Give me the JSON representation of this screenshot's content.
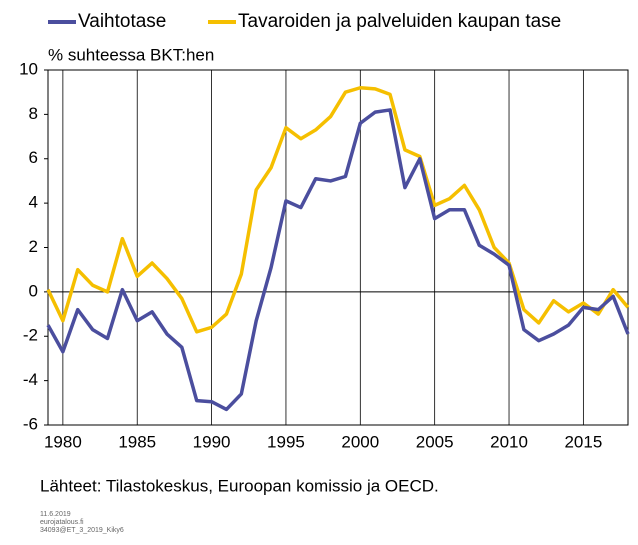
{
  "chart_data": {
    "type": "line",
    "y_label": "% suhteessa BKT:hen",
    "source": "Lähteet: Tilastokeskus, Euroopan komissio ja OECD.",
    "footer": [
      "11.6.2019",
      "eurojatalous.fi",
      "34093@ET_3_2019_Kiky6"
    ],
    "x": [
      1979,
      1980,
      1981,
      1982,
      1983,
      1984,
      1985,
      1986,
      1987,
      1988,
      1989,
      1990,
      1991,
      1992,
      1993,
      1994,
      1995,
      1996,
      1997,
      1998,
      1999,
      2000,
      2001,
      2002,
      2003,
      2004,
      2005,
      2006,
      2007,
      2008,
      2009,
      2010,
      2011,
      2012,
      2013,
      2014,
      2015,
      2016,
      2017,
      2018
    ],
    "series": [
      {
        "name": "Vaihtotase",
        "color": "#4b4e9e",
        "values": [
          -1.5,
          -2.7,
          -0.8,
          -1.7,
          -2.1,
          0.1,
          -1.3,
          -0.9,
          -1.9,
          -2.5,
          -4.9,
          -4.95,
          -5.3,
          -4.6,
          -1.3,
          1.1,
          4.1,
          3.8,
          5.1,
          5.0,
          5.2,
          7.6,
          8.1,
          8.2,
          4.7,
          6.0,
          3.3,
          3.7,
          3.7,
          2.1,
          1.7,
          1.2,
          -1.7,
          -2.2,
          -1.9,
          -1.5,
          -0.7,
          -0.8,
          -0.2,
          -1.9
        ]
      },
      {
        "name": "Tavaroiden ja palveluiden kaupan tase",
        "color": "#f5bf00",
        "values": [
          0.1,
          -1.3,
          1.0,
          0.3,
          0.0,
          2.4,
          0.7,
          1.3,
          0.6,
          -0.3,
          -1.8,
          -1.6,
          -1.0,
          0.8,
          4.6,
          5.6,
          7.4,
          6.9,
          7.3,
          7.9,
          9.0,
          9.2,
          9.15,
          8.9,
          6.4,
          6.1,
          3.9,
          4.2,
          4.8,
          3.7,
          2.0,
          1.3,
          -0.8,
          -1.4,
          -0.4,
          -0.9,
          -0.5,
          -1.0,
          0.1,
          -0.7
        ]
      }
    ],
    "xlim": [
      1979,
      2018
    ],
    "xticks": [
      1980,
      1985,
      1990,
      1995,
      2000,
      2005,
      2010,
      2015
    ],
    "ylim": [
      -6,
      10
    ],
    "yticks": [
      -6,
      -4,
      -2,
      0,
      2,
      4,
      6,
      8,
      10
    ],
    "grid": "x",
    "legend": "top"
  }
}
